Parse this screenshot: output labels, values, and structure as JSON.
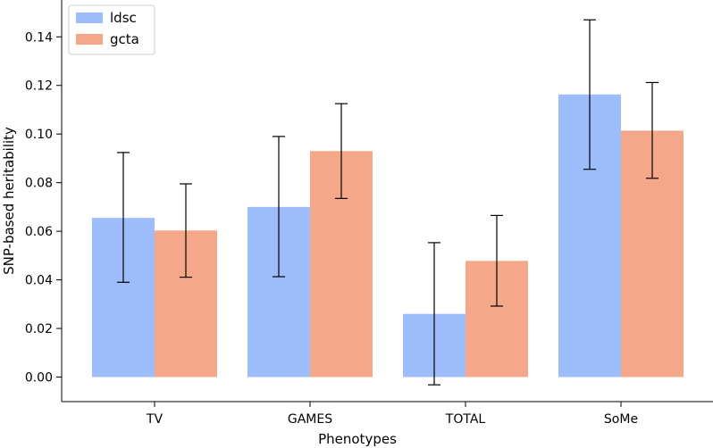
{
  "chart_data": {
    "type": "bar",
    "title": "",
    "xlabel": "Phenotypes",
    "ylabel": "SNP-based heritability",
    "categories": [
      "TV",
      "GAMES",
      "TOTAL",
      "SoMe"
    ],
    "ylim": [
      -0.01,
      0.155
    ],
    "yticks": [
      0.0,
      0.02,
      0.04,
      0.06,
      0.08,
      0.1,
      0.12,
      0.14
    ],
    "ytick_labels": [
      "0.00",
      "0.02",
      "0.04",
      "0.06",
      "0.08",
      "0.10",
      "0.12",
      "0.14"
    ],
    "legend_position": "top-left",
    "series": [
      {
        "name": "ldsc",
        "color": "#9dbcfa",
        "values": [
          0.0655,
          0.07,
          0.026,
          0.1163
        ],
        "err_low": [
          0.039,
          0.0413,
          -0.0032,
          0.0855
        ],
        "err_high": [
          0.0924,
          0.099,
          0.0553,
          0.147
        ]
      },
      {
        "name": "gcta",
        "color": "#f5a889",
        "values": [
          0.0603,
          0.093,
          0.0478,
          0.1014
        ],
        "err_low": [
          0.0411,
          0.0735,
          0.0292,
          0.0818
        ],
        "err_high": [
          0.0795,
          0.1125,
          0.0665,
          0.1212
        ]
      }
    ]
  }
}
